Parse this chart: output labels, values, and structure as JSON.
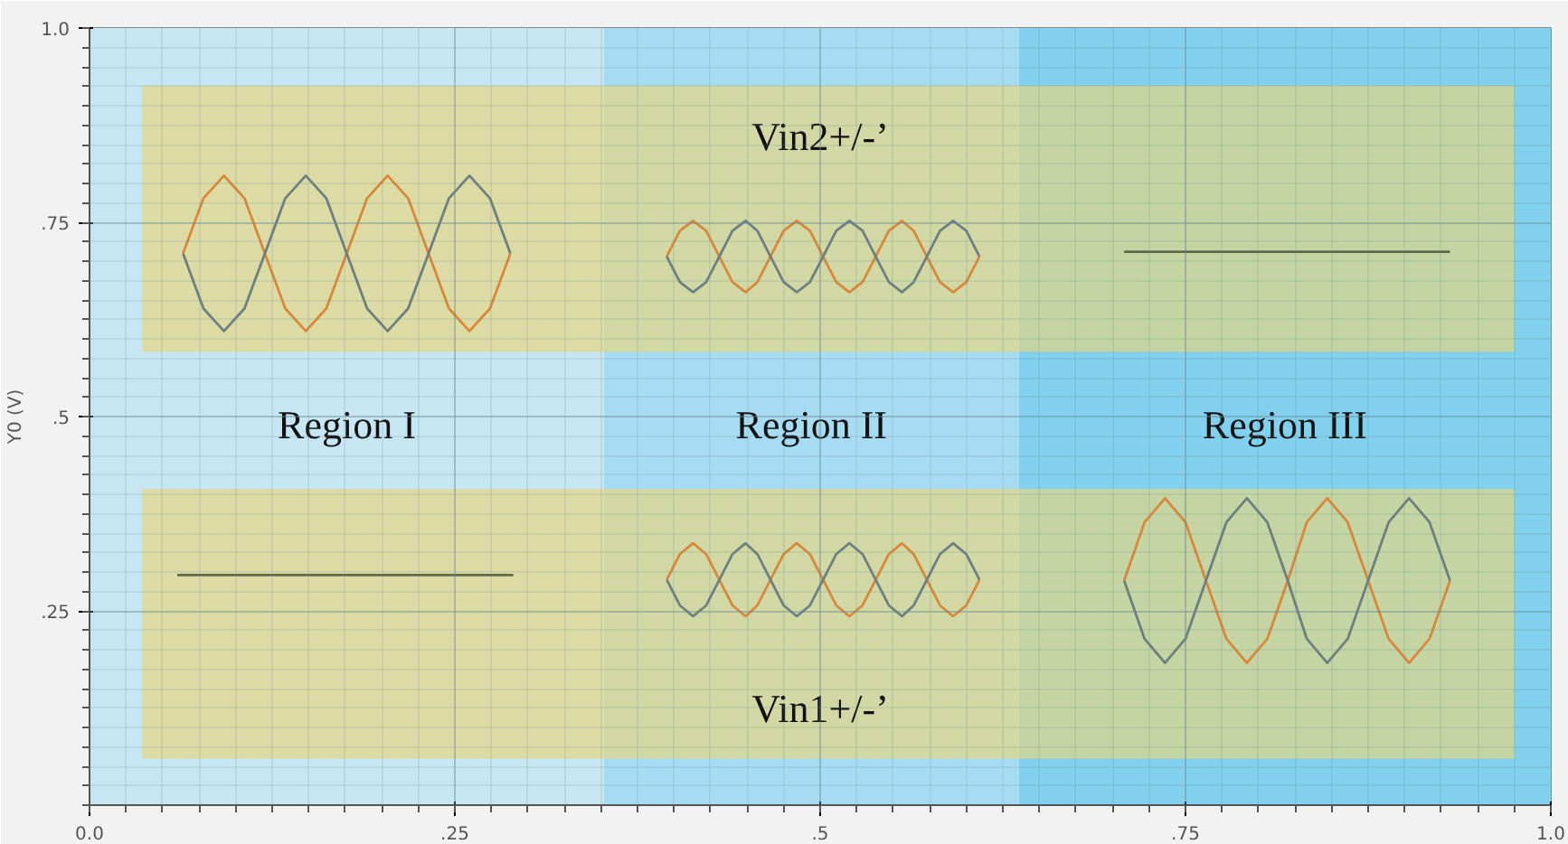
{
  "chart_data": {
    "type": "line",
    "ylabel": "Y0 (V)",
    "xlim": [
      0.0,
      1.0
    ],
    "ylim": [
      0.0,
      1.0
    ],
    "xticks": [
      {
        "value": 0.0,
        "label": "0.0"
      },
      {
        "value": 0.25,
        "label": ".25"
      },
      {
        "value": 0.5,
        "label": ".5"
      },
      {
        "value": 0.75,
        "label": ".75"
      },
      {
        "value": 1.0,
        "label": "1.0"
      }
    ],
    "yticks": [
      {
        "value": 0.25,
        "label": ".25"
      },
      {
        "value": 0.5,
        "label": ".5"
      },
      {
        "value": 0.75,
        "label": ".75"
      },
      {
        "value": 1.0,
        "label": "1.0"
      }
    ],
    "grid": true,
    "bands": [
      {
        "axis": "x",
        "from": 0.0,
        "to": 0.352,
        "label": "Region I",
        "color": "#c5e6f2"
      },
      {
        "axis": "x",
        "from": 0.352,
        "to": 0.636,
        "label": "Region II",
        "color": "#a6dcf2"
      },
      {
        "axis": "x",
        "from": 0.636,
        "to": 1.0,
        "label": "Region III",
        "color": "#80d0ee"
      },
      {
        "axis": "y",
        "from": 0.583,
        "to": 0.926,
        "label": "Vin2+/-’",
        "color": "#e8d67a"
      },
      {
        "axis": "y",
        "from": 0.06,
        "to": 0.407,
        "label": "Vin1+/-’",
        "color": "#e8d67a"
      }
    ],
    "series": [
      {
        "color": "#d9883a",
        "x": [
          0.064,
          0.078,
          0.092,
          0.106,
          0.12,
          0.134,
          0.148,
          0.162,
          0.176,
          0.19,
          0.204,
          0.218,
          0.232,
          0.246,
          0.26,
          0.274,
          0.288
        ],
        "values": [
          0.71,
          0.781,
          0.81,
          0.781,
          0.71,
          0.639,
          0.61,
          0.639,
          0.71,
          0.781,
          0.81,
          0.781,
          0.71,
          0.639,
          0.61,
          0.639,
          0.71
        ]
      },
      {
        "color": "#6e7f80",
        "x": [
          0.064,
          0.078,
          0.092,
          0.106,
          0.12,
          0.134,
          0.148,
          0.162,
          0.176,
          0.19,
          0.204,
          0.218,
          0.232,
          0.246,
          0.26,
          0.274,
          0.288
        ],
        "values": [
          0.71,
          0.639,
          0.61,
          0.639,
          0.71,
          0.781,
          0.81,
          0.781,
          0.71,
          0.639,
          0.61,
          0.639,
          0.71,
          0.781,
          0.81,
          0.781,
          0.71
        ]
      },
      {
        "color": "#d9883a",
        "x": [
          0.395,
          0.404,
          0.413,
          0.422,
          0.431,
          0.44,
          0.449,
          0.457,
          0.466,
          0.475,
          0.484,
          0.493,
          0.502,
          0.511,
          0.52,
          0.529,
          0.538,
          0.547,
          0.556,
          0.564,
          0.573,
          0.582,
          0.591,
          0.6,
          0.609
        ],
        "values": [
          0.706,
          0.739,
          0.752,
          0.739,
          0.706,
          0.673,
          0.66,
          0.673,
          0.706,
          0.739,
          0.752,
          0.739,
          0.706,
          0.673,
          0.66,
          0.673,
          0.706,
          0.739,
          0.752,
          0.739,
          0.706,
          0.673,
          0.66,
          0.673,
          0.706
        ]
      },
      {
        "color": "#6e7f80",
        "x": [
          0.395,
          0.404,
          0.413,
          0.422,
          0.431,
          0.44,
          0.449,
          0.457,
          0.466,
          0.475,
          0.484,
          0.493,
          0.502,
          0.511,
          0.52,
          0.529,
          0.538,
          0.547,
          0.556,
          0.564,
          0.573,
          0.582,
          0.591,
          0.6,
          0.609
        ],
        "values": [
          0.706,
          0.673,
          0.66,
          0.673,
          0.706,
          0.739,
          0.752,
          0.739,
          0.706,
          0.673,
          0.66,
          0.673,
          0.706,
          0.739,
          0.752,
          0.739,
          0.706,
          0.673,
          0.66,
          0.673,
          0.706,
          0.739,
          0.752,
          0.739,
          0.706
        ]
      },
      {
        "color": "#5f6a4a",
        "x": [
          0.708,
          0.931
        ],
        "values": [
          0.712,
          0.712
        ]
      },
      {
        "color": "#5f6a4a",
        "x": [
          0.06,
          0.29
        ],
        "values": [
          0.296,
          0.296
        ]
      },
      {
        "color": "#d9883a",
        "x": [
          0.395,
          0.404,
          0.413,
          0.422,
          0.431,
          0.44,
          0.449,
          0.457,
          0.466,
          0.475,
          0.484,
          0.493,
          0.502,
          0.511,
          0.52,
          0.529,
          0.538,
          0.547,
          0.556,
          0.564,
          0.573,
          0.582,
          0.591,
          0.6,
          0.609
        ],
        "values": [
          0.29,
          0.323,
          0.337,
          0.323,
          0.29,
          0.257,
          0.243,
          0.257,
          0.29,
          0.323,
          0.337,
          0.323,
          0.29,
          0.257,
          0.243,
          0.257,
          0.29,
          0.323,
          0.337,
          0.323,
          0.29,
          0.257,
          0.243,
          0.257,
          0.29
        ]
      },
      {
        "color": "#6e7f80",
        "x": [
          0.395,
          0.404,
          0.413,
          0.422,
          0.431,
          0.44,
          0.449,
          0.457,
          0.466,
          0.475,
          0.484,
          0.493,
          0.502,
          0.511,
          0.52,
          0.529,
          0.538,
          0.547,
          0.556,
          0.564,
          0.573,
          0.582,
          0.591,
          0.6,
          0.609
        ],
        "values": [
          0.29,
          0.257,
          0.243,
          0.257,
          0.29,
          0.323,
          0.337,
          0.323,
          0.29,
          0.257,
          0.243,
          0.257,
          0.29,
          0.323,
          0.337,
          0.323,
          0.29,
          0.257,
          0.243,
          0.257,
          0.29,
          0.323,
          0.337,
          0.323,
          0.29
        ]
      },
      {
        "color": "#d9883a",
        "x": [
          0.708,
          0.722,
          0.736,
          0.75,
          0.764,
          0.778,
          0.792,
          0.806,
          0.82,
          0.833,
          0.847,
          0.861,
          0.875,
          0.889,
          0.903,
          0.917,
          0.931
        ],
        "values": [
          0.289,
          0.364,
          0.395,
          0.364,
          0.289,
          0.214,
          0.183,
          0.214,
          0.289,
          0.364,
          0.395,
          0.364,
          0.289,
          0.214,
          0.183,
          0.214,
          0.289
        ]
      },
      {
        "color": "#6e7f80",
        "x": [
          0.708,
          0.722,
          0.736,
          0.75,
          0.764,
          0.778,
          0.792,
          0.806,
          0.82,
          0.833,
          0.847,
          0.861,
          0.875,
          0.889,
          0.903,
          0.917,
          0.931
        ],
        "values": [
          0.289,
          0.214,
          0.183,
          0.214,
          0.289,
          0.364,
          0.395,
          0.364,
          0.289,
          0.214,
          0.183,
          0.214,
          0.289,
          0.364,
          0.395,
          0.364,
          0.289
        ]
      }
    ]
  }
}
